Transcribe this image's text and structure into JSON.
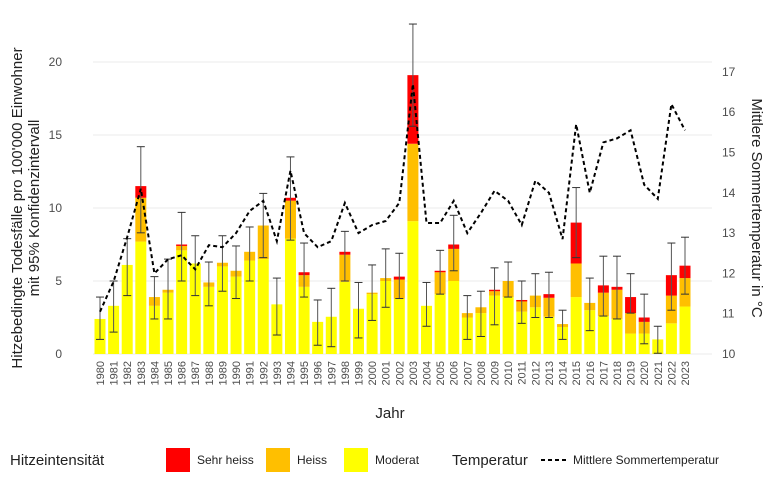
{
  "chart_data": {
    "type": "bar",
    "subtype": "stacked bar with error bars and secondary-axis line",
    "xlabel": "Jahr",
    "ylabel": "Hitzebedingte Todesfälle pro 100'000 Einwohner\nmit 95% Konfidenzintervall",
    "ylabel_lines": [
      "Hitzebedingte Todesfälle pro 100'000 Einwohner",
      "mit 95% Konfidenzintervall"
    ],
    "y2label": "Mittlere Sommertemperatur in °C",
    "ylim": [
      0,
      21
    ],
    "y2lim": [
      10,
      17.5
    ],
    "yticks": [
      0,
      5,
      10,
      15,
      20
    ],
    "y2ticks": [
      10,
      11,
      12,
      13,
      14,
      15,
      16,
      17
    ],
    "grid": true,
    "legend_placement": "bottom",
    "categories": [
      "1980",
      "1981",
      "1982",
      "1983",
      "1984",
      "1985",
      "1986",
      "1987",
      "1988",
      "1989",
      "1990",
      "1991",
      "1992",
      "1993",
      "1994",
      "1995",
      "1996",
      "1997",
      "1998",
      "1999",
      "2000",
      "2001",
      "2002",
      "2003",
      "2004",
      "2005",
      "2006",
      "2007",
      "2008",
      "2009",
      "2010",
      "2011",
      "2012",
      "2013",
      "2014",
      "2015",
      "2016",
      "2017",
      "2018",
      "2019",
      "2020",
      "2021",
      "2022",
      "2023"
    ],
    "series": [
      {
        "name": "Moderat",
        "color": "#ffff00",
        "values": [
          2.4,
          3.3,
          6.1,
          7.7,
          3.3,
          4.2,
          7.1,
          6.2,
          4.6,
          6.0,
          5.3,
          6.4,
          6.5,
          3.4,
          7.9,
          4.6,
          2.2,
          2.55,
          4.95,
          3.1,
          4.1,
          5.0,
          3.8,
          9.1,
          3.3,
          4.1,
          5.0,
          2.5,
          2.8,
          4.0,
          3.9,
          2.9,
          3.2,
          2.55,
          1.85,
          3.9,
          3.0,
          2.6,
          2.4,
          1.4,
          1.4,
          1.0,
          2.1,
          3.25
        ]
      },
      {
        "name": "Heiss",
        "color": "#ffbf00",
        "values": [
          0,
          0,
          0,
          3.0,
          0.6,
          0.2,
          0.3,
          0,
          0.3,
          0.25,
          0.4,
          0.6,
          2.3,
          0,
          2.6,
          0.8,
          0,
          0,
          1.85,
          0,
          0.1,
          0.2,
          1.3,
          5.3,
          0,
          1.5,
          2.2,
          0.3,
          0.4,
          0.3,
          1.1,
          0.7,
          0.8,
          1.3,
          0.2,
          2.3,
          0.5,
          1.6,
          2.0,
          1.4,
          0.8,
          0,
          1.9,
          1.95
        ]
      },
      {
        "name": "Sehr heiss",
        "color": "#ff0000",
        "values": [
          0,
          0,
          0,
          0.8,
          0,
          0,
          0.1,
          0,
          0,
          0,
          0,
          0,
          0,
          0,
          0.2,
          0.2,
          0,
          0,
          0.2,
          0,
          0,
          0,
          0.2,
          4.7,
          0,
          0.1,
          0.3,
          0,
          0,
          0.1,
          0,
          0.1,
          0,
          0.25,
          0,
          2.8,
          0,
          0.5,
          0.2,
          1.1,
          0.3,
          0,
          1.4,
          0.85
        ]
      }
    ],
    "ci_lower": [
      1.0,
      1.5,
      4.0,
      8.3,
      2.4,
      2.4,
      5.0,
      4.0,
      3.3,
      4.3,
      3.8,
      5.0,
      6.6,
      1.3,
      7.8,
      3.9,
      0.6,
      0.5,
      5.0,
      1.1,
      2.3,
      3.2,
      3.8,
      15.6,
      1.9,
      4.1,
      5.7,
      1.0,
      1.2,
      2.0,
      3.9,
      2.1,
      2.5,
      2.5,
      1.0,
      6.6,
      1.6,
      2.6,
      2.4,
      2.8,
      0.7,
      0.05,
      3.0,
      4.1
    ],
    "ci_upper": [
      3.9,
      5.0,
      7.9,
      14.2,
      5.3,
      6.5,
      9.7,
      8.1,
      6.3,
      8.1,
      7.4,
      8.7,
      11.0,
      5.2,
      13.5,
      7.6,
      3.7,
      4.5,
      8.4,
      4.9,
      6.1,
      7.2,
      6.9,
      22.6,
      4.9,
      7.1,
      9.5,
      4.0,
      4.3,
      5.9,
      6.3,
      5.0,
      5.5,
      5.6,
      3.0,
      11.4,
      5.2,
      6.7,
      6.7,
      5.5,
      4.1,
      1.9,
      7.6,
      8.0
    ],
    "line": {
      "name": "Mittlere Sommertemperatur",
      "axis": "right",
      "style": "dashed",
      "color": "#000000",
      "values": [
        11.05,
        11.8,
        12.9,
        14.1,
        12.0,
        12.35,
        12.45,
        12.1,
        12.7,
        12.65,
        13.0,
        13.55,
        13.8,
        12.8,
        14.55,
        13.0,
        12.65,
        12.8,
        13.75,
        13.0,
        13.2,
        13.3,
        13.75,
        16.7,
        13.25,
        13.25,
        13.8,
        13.0,
        13.5,
        14.05,
        13.8,
        13.2,
        14.3,
        14.0,
        12.85,
        15.7,
        14.0,
        15.25,
        15.35,
        15.55,
        14.2,
        13.85,
        16.2,
        15.55
      ]
    },
    "legend": {
      "fill_title": "Hitzeintensität",
      "fill_items": [
        "Sehr heiss",
        "Heiss",
        "Moderat"
      ],
      "line_title": "Temperatur",
      "line_items": [
        "Mittlere Sommertemperatur"
      ]
    }
  }
}
